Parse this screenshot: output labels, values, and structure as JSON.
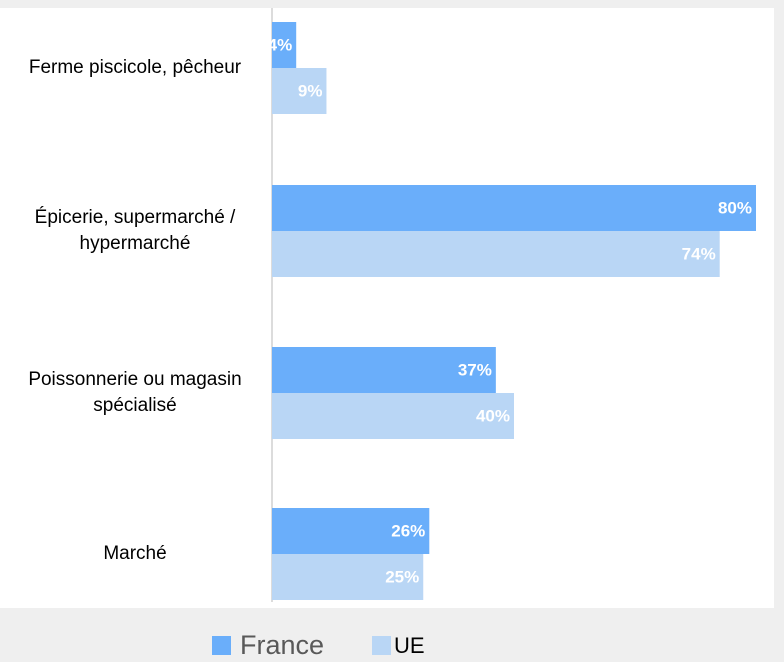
{
  "chart_data": {
    "type": "barh",
    "categories": [
      "Ferme piscicole, pêcheur",
      "Épicerie, supermarché / hypermarché",
      "Poissonnerie ou magasin spécialisé",
      "Marché"
    ],
    "series": [
      {
        "name": "France",
        "color": "#6aaefa",
        "values": [
          4,
          80,
          37,
          26
        ],
        "value_labels": [
          "4%",
          "80%",
          "37%",
          "26%"
        ]
      },
      {
        "name": "UE",
        "color": "#b9d6f5",
        "values": [
          9,
          74,
          40,
          25
        ],
        "value_labels": [
          "9%",
          "74%",
          "40%",
          "25%"
        ]
      }
    ],
    "xlim": [
      0,
      80
    ],
    "legend": "bottom"
  }
}
